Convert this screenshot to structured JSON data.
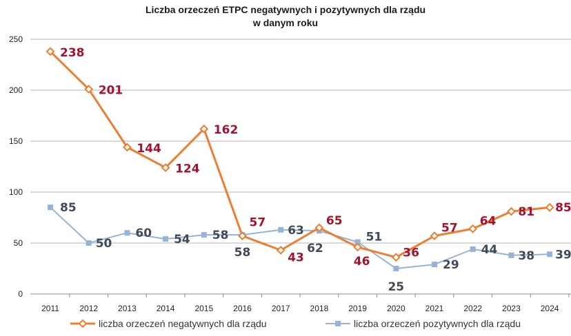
{
  "chart_data": {
    "type": "line",
    "title": [
      "Liczba orzeczeń ETPC negatywnych i pozytywnych dla rządu",
      "w danym roku"
    ],
    "xlabel": "",
    "ylabel": "",
    "categories": [
      "2011",
      "2012",
      "2013",
      "2014",
      "2015",
      "2016",
      "2017",
      "2018",
      "2019",
      "2020",
      "2021",
      "2022",
      "2023",
      "2024"
    ],
    "ylim": [
      0,
      250
    ],
    "yticks": [
      0,
      50,
      100,
      150,
      200,
      250
    ],
    "grid": "horizontal",
    "legend_position": "bottom",
    "series": [
      {
        "name": "liczba orzeczeń negatywnych dla rządu",
        "color": "#ED7D31",
        "label_color": "#A3122F",
        "marker": "diamond-open",
        "values": [
          238,
          201,
          144,
          124,
          162,
          57,
          43,
          65,
          46,
          36,
          57,
          64,
          81,
          85
        ]
      },
      {
        "name": "liczba orzeczeń pozytywnych dla rządu",
        "color": "#95B3D7",
        "label_color": "#3F4A5A",
        "marker": "square",
        "values": [
          85,
          50,
          60,
          54,
          58,
          58,
          63,
          62,
          51,
          25,
          29,
          44,
          38,
          39
        ]
      }
    ]
  }
}
